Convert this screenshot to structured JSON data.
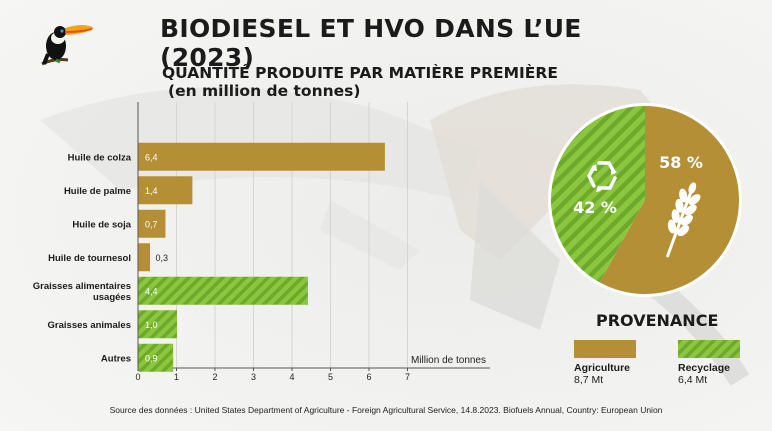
{
  "title": "BIODIESEL ET HVO DANS L’UE (2023)",
  "subtitle_line1": "QUANTITÉ PRODUITE PAR MATIÈRE PREMIÈRE",
  "subtitle_line2": "(en million de tonnes)",
  "source": "Source des données : United States Department of Agriculture - Foreign Agricultural Service, 14.8.2023. Biofuels Annual, Country: European Union",
  "colors": {
    "agriculture": "#b58f35",
    "recycling": "#8bc63f",
    "recycling_stripe": "#6fa92b"
  },
  "chart_data": [
    {
      "type": "bar",
      "orientation": "horizontal",
      "categories": [
        "Huile de colza",
        "Huile de palme",
        "Huile de soja",
        "Huile de tournesol",
        "Graisses alimentaires usagées",
        "Graisses animales",
        "Autres"
      ],
      "values": [
        6.4,
        1.4,
        0.7,
        0.3,
        4.4,
        1.0,
        0.9
      ],
      "value_labels": [
        "6,4",
        "1,4",
        "0,7",
        "0,3",
        "4,4",
        "1,0",
        "0,9"
      ],
      "groups": [
        "agriculture",
        "agriculture",
        "agriculture",
        "agriculture",
        "recycling",
        "recycling",
        "recycling"
      ],
      "xlabel": "Million de tonnes",
      "xticks": [
        "0",
        "1",
        "2",
        "3",
        "4",
        "5",
        "6",
        "7"
      ],
      "xlim": [
        0,
        7
      ],
      "grid": "vertical"
    },
    {
      "type": "pie",
      "title": "PROVENANCE",
      "slices": [
        {
          "name": "Agriculture",
          "value": 58,
          "label": "58 %",
          "amount": "8,7 Mt",
          "icon": "wheat-icon"
        },
        {
          "name": "Recyclage",
          "value": 42,
          "label": "42 %",
          "amount": "6,4 Mt",
          "icon": "recycle-icon"
        }
      ]
    }
  ]
}
